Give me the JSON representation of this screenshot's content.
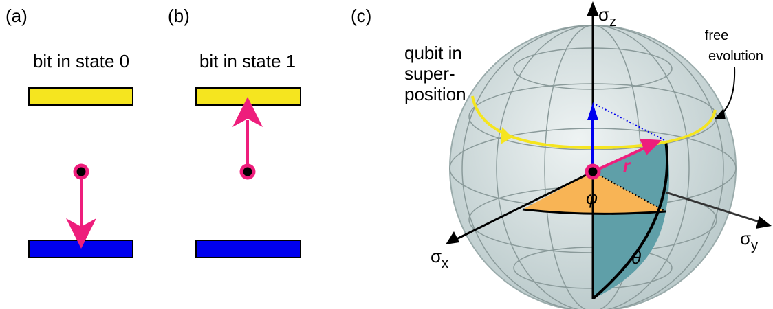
{
  "panels": [
    {
      "label": "(a)",
      "caption": "bit in state 0"
    },
    {
      "label": "(b)",
      "caption": "bit in state 1"
    },
    {
      "label": "(c)",
      "annotation": [
        "qubit in",
        "super-",
        "position"
      ],
      "free_evolution": [
        "free",
        "evolution"
      ],
      "axes": {
        "z": {
          "symbol": "σ",
          "subscript": "z"
        },
        "x": {
          "symbol": "σ",
          "subscript": "x"
        },
        "y": {
          "symbol": "σ",
          "subscript": "y"
        }
      },
      "vector": "r",
      "azimuth": "φ",
      "polar": "θ"
    }
  ]
}
